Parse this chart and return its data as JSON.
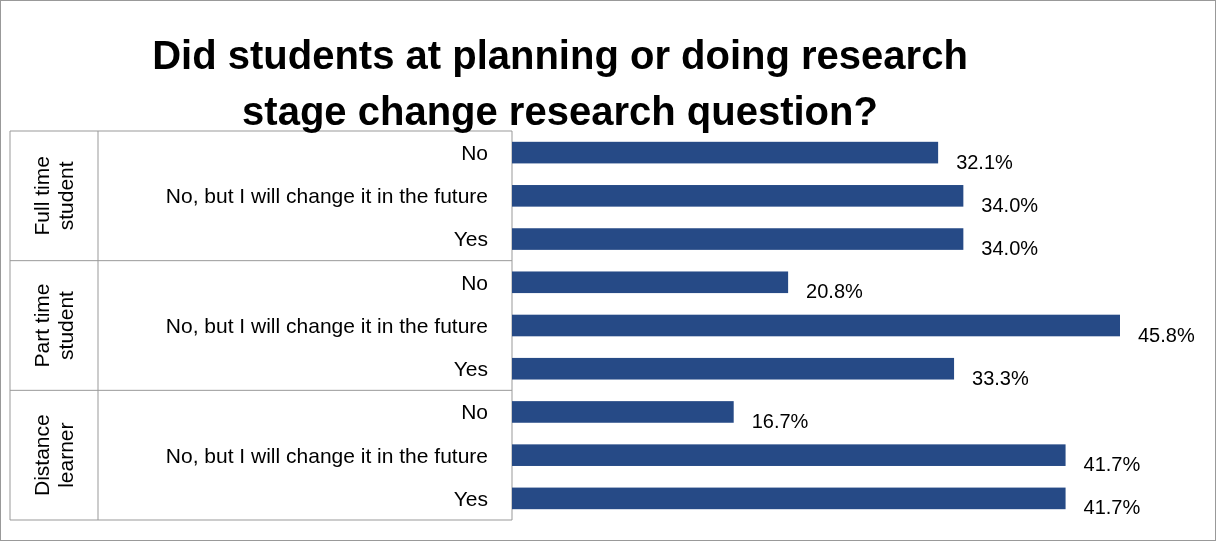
{
  "chart_data": {
    "type": "bar",
    "orientation": "horizontal",
    "title": "Did students at planning or doing research\nstage change research question?",
    "categories": [
      "No",
      "No, but I will change it in the future",
      "Yes",
      "No",
      "No, but I will change it in the future",
      "Yes",
      "No",
      "No, but I will change it in the future",
      "Yes"
    ],
    "values": [
      32.1,
      34.0,
      34.0,
      20.8,
      45.8,
      33.3,
      16.7,
      41.7,
      41.7
    ],
    "value_labels": [
      "32.1%",
      "34.0%",
      "34.0%",
      "20.8%",
      "45.8%",
      "33.3%",
      "16.7%",
      "41.7%",
      "41.7%"
    ],
    "color": "#264a86",
    "annotations": [
      "Full time\nstudent",
      "Part time\nstudent",
      "Distance\nlearner"
    ],
    "grid": false
  }
}
